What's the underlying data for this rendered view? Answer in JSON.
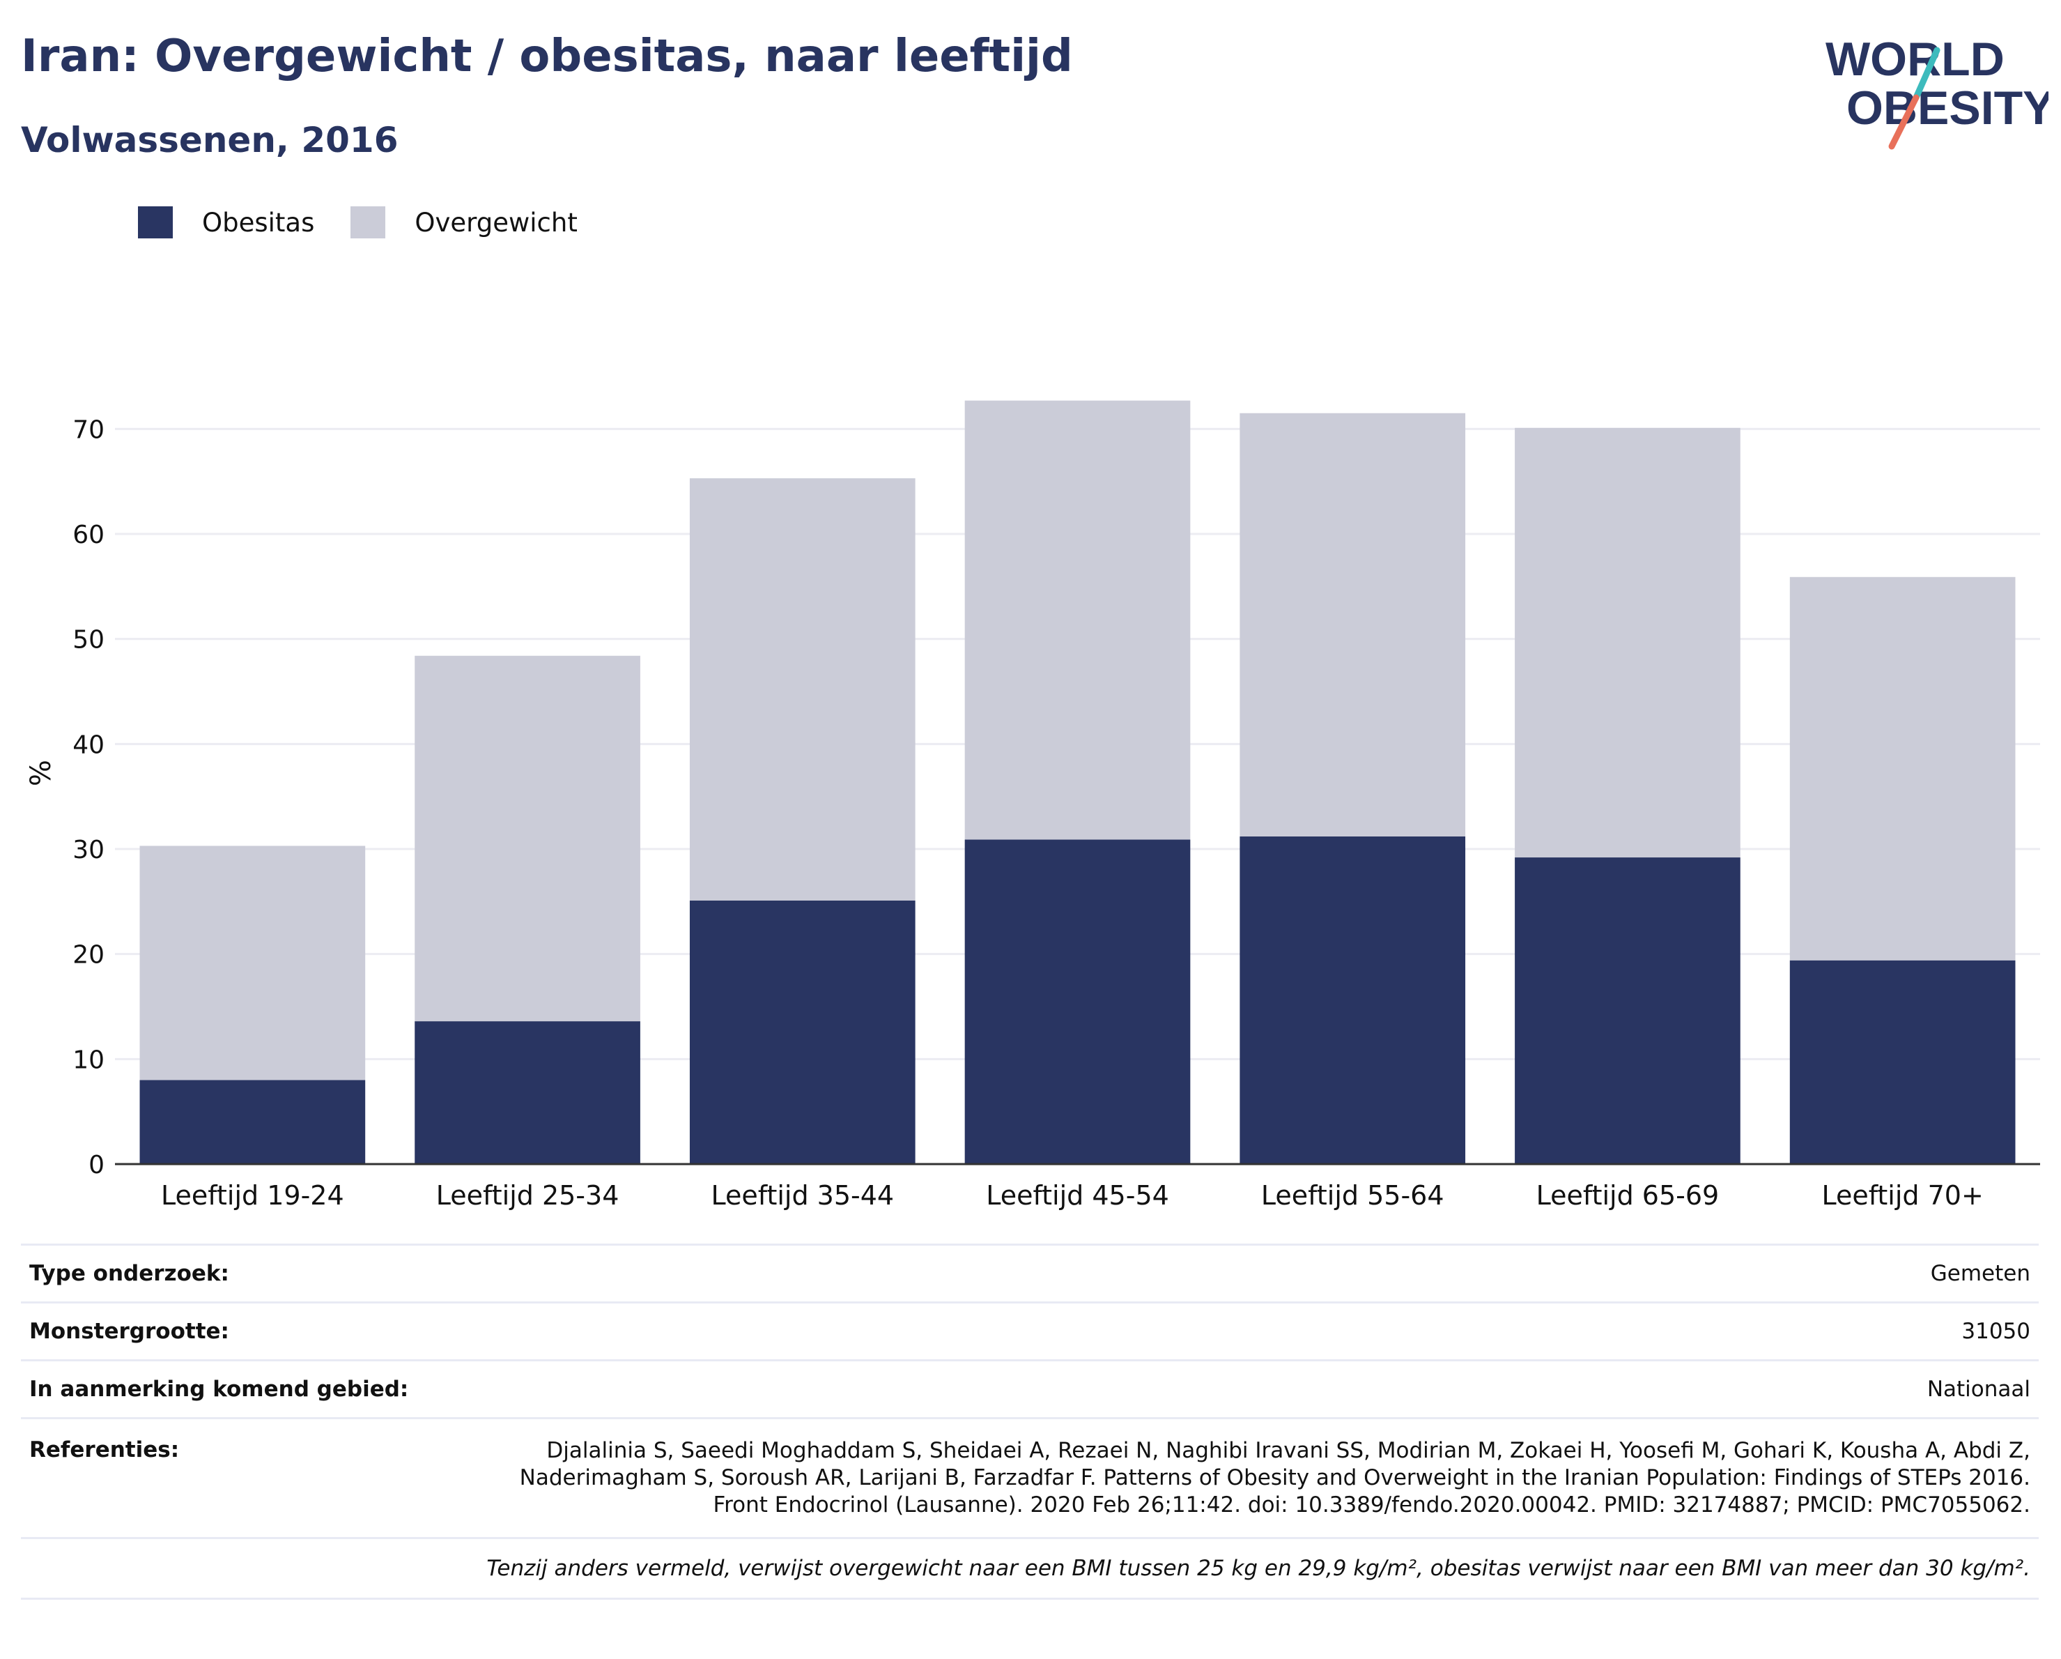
{
  "header": {
    "title": "Iran: Overgewicht / obesitas, naar leeftijd",
    "subtitle": "Volwassenen, 2016"
  },
  "logo": {
    "line1": "WORLD",
    "line2": "OBESITY",
    "colors": {
      "text": "#283460",
      "slash_top": "#3dbbbd",
      "slash_bottom": "#e8705a"
    }
  },
  "legend": {
    "items": [
      {
        "label": "Obesitas",
        "color": "#293562"
      },
      {
        "label": "Overgewicht",
        "color": "#cbccd8"
      }
    ]
  },
  "chart_data": {
    "type": "bar",
    "stacked": true,
    "categories": [
      "Leeftijd 19-24",
      "Leeftijd 25-34",
      "Leeftijd 35-44",
      "Leeftijd 45-54",
      "Leeftijd 55-64",
      "Leeftijd 65-69",
      "Leeftijd 70+"
    ],
    "series": [
      {
        "name": "Obesitas",
        "color": "#293562",
        "values": [
          8.0,
          13.6,
          25.1,
          30.9,
          31.2,
          29.2,
          19.4
        ]
      },
      {
        "name": "Overgewicht",
        "color": "#cbccd8",
        "values": [
          22.3,
          34.8,
          40.2,
          41.8,
          40.3,
          40.9,
          36.5
        ]
      }
    ],
    "totals": [
      30.3,
      48.4,
      65.3,
      72.7,
      71.5,
      70.1,
      55.9
    ],
    "ylabel": "%",
    "xlabel": "",
    "ylim": [
      0,
      75
    ],
    "yticks": [
      0,
      10,
      20,
      30,
      40,
      50,
      60,
      70
    ],
    "grid": true,
    "legend_position": "top-left"
  },
  "meta": {
    "rows": [
      {
        "label": "Type onderzoek:",
        "value": "Gemeten"
      },
      {
        "label": "Monstergrootte:",
        "value": "31050"
      },
      {
        "label": "In aanmerking komend gebied:",
        "value": "Nationaal"
      }
    ],
    "references": {
      "label": "Referenties:",
      "value": "Djalalinia S, Saeedi Moghaddam S, Sheidaei A, Rezaei N, Naghibi Iravani SS, Modirian M, Zokaei H, Yoosefi M, Gohari K, Kousha A, Abdi Z, Naderimagham S, Soroush AR, Larijani B, Farzadfar F. Patterns of Obesity and Overweight in the Iranian Population: Findings of STEPs 2016. Front Endocrinol (Lausanne). 2020 Feb 26;11:42. doi: 10.3389/fendo.2020.00042. PMID: 32174887; PMCID: PMC7055062."
    },
    "footnote": "Tenzij anders vermeld, verwijst overgewicht naar een BMI tussen 25 kg en 29,9 kg/m², obesitas verwijst naar een BMI van meer dan 30 kg/m²."
  }
}
